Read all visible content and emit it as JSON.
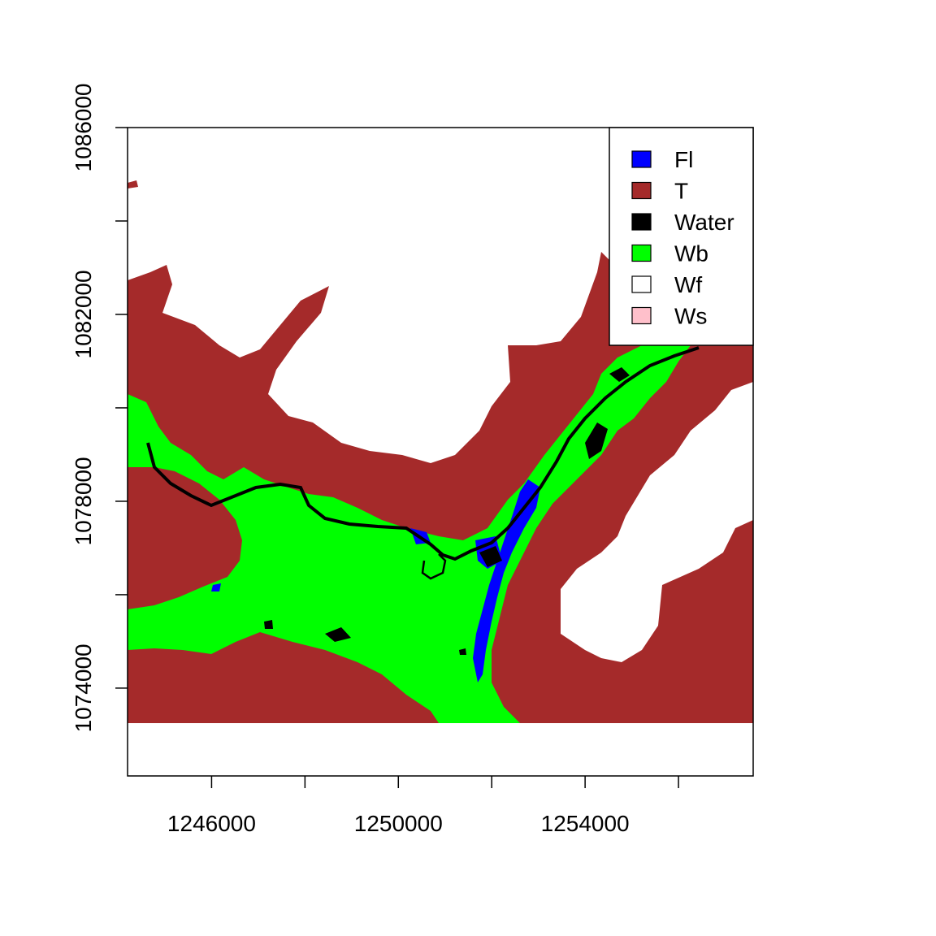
{
  "map": {
    "x_axis": {
      "ticks": [
        1246000,
        1248000,
        1250000,
        1252000,
        1254000,
        1256000
      ],
      "labels": [
        "1246000",
        "",
        "1250000",
        "",
        "1254000",
        ""
      ]
    },
    "y_axis": {
      "ticks": [
        1074000,
        1076000,
        1078000,
        1080000,
        1082000,
        1084000,
        1086000
      ],
      "labels": [
        "1074000",
        "",
        "1078000",
        "",
        "1082000",
        "",
        "1086000"
      ]
    },
    "legend": [
      {
        "label": "Fl",
        "color": "#0000ff"
      },
      {
        "label": "T",
        "color": "#a52a2a"
      },
      {
        "label": "Water",
        "color": "#000000"
      },
      {
        "label": "Wb",
        "color": "#00ff00"
      },
      {
        "label": "Wf",
        "color": "#ffffff"
      },
      {
        "label": "Ws",
        "color": "#ffc0cb"
      }
    ]
  }
}
